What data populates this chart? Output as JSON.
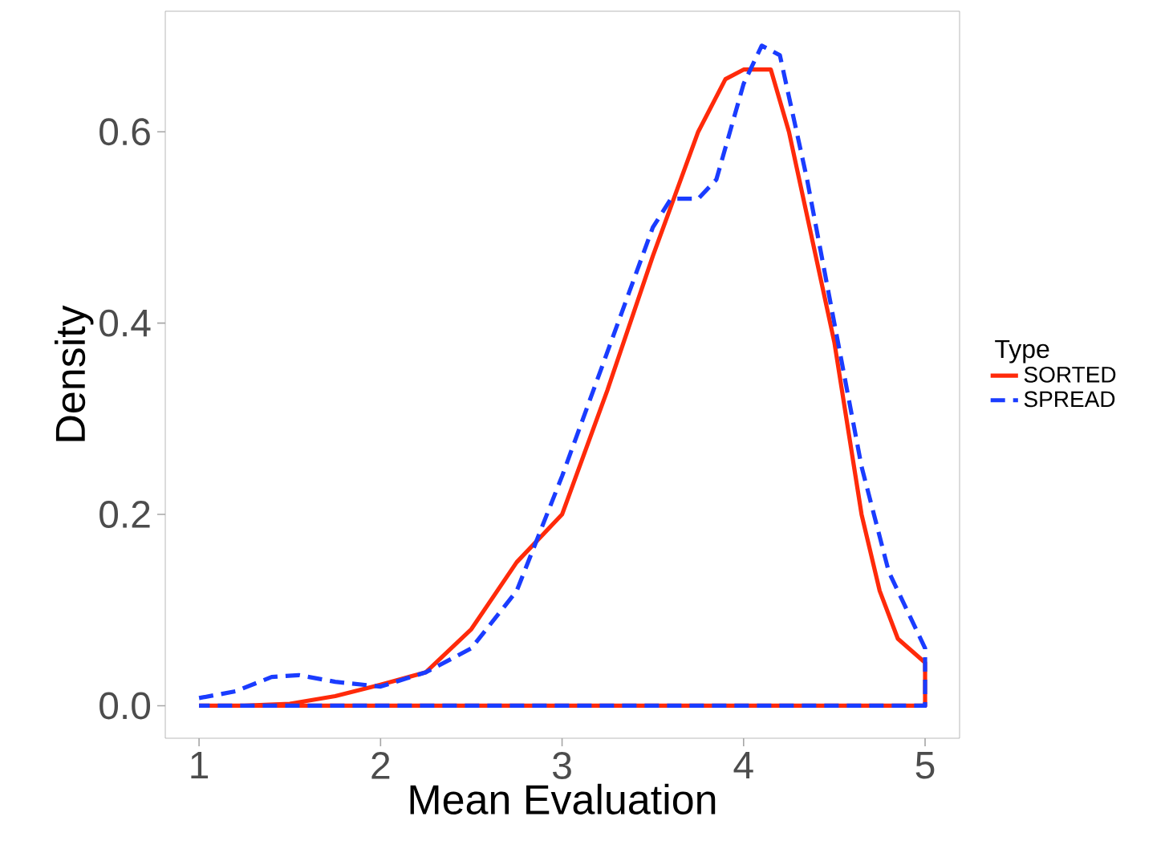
{
  "chart_data": {
    "type": "line",
    "xlabel": "Mean Evaluation",
    "ylabel": "Density",
    "legend_title": "Type",
    "legend": "right",
    "grid": false,
    "xlim": [
      0.814,
      5.19
    ],
    "ylim": [
      -0.034,
      0.726
    ],
    "xticks": [
      1,
      2,
      3,
      4,
      5
    ],
    "yticks": [
      {
        "value": 0,
        "label": "0.0"
      },
      {
        "value": 0.2,
        "label": "0.2"
      },
      {
        "value": 0.4,
        "label": "0.4"
      },
      {
        "value": 0.6,
        "label": "0.6"
      }
    ],
    "series": [
      {
        "name": "SORTED",
        "color": "#ff2a0a",
        "line_style": "solid",
        "x": [
          1.25,
          1.5,
          1.75,
          2.0,
          2.25,
          2.5,
          2.75,
          3.0,
          3.25,
          3.5,
          3.75,
          3.9,
          4.0,
          4.15,
          4.25,
          4.5,
          4.65,
          4.75,
          4.85,
          5.0,
          5.0,
          1.0
        ],
        "values": [
          0,
          0.002,
          0.01,
          0.022,
          0.035,
          0.08,
          0.15,
          0.2,
          0.33,
          0.47,
          0.6,
          0.655,
          0.665,
          0.665,
          0.6,
          0.38,
          0.2,
          0.12,
          0.07,
          0.045,
          0,
          0
        ]
      },
      {
        "name": "SPREAD",
        "color": "#1a3cff",
        "line_style": "dashed",
        "x": [
          1.0,
          1.2,
          1.4,
          1.55,
          1.75,
          2.0,
          2.25,
          2.5,
          2.75,
          3.0,
          3.25,
          3.5,
          3.6,
          3.75,
          3.85,
          4.0,
          4.1,
          4.2,
          4.35,
          4.5,
          4.65,
          4.8,
          4.9,
          5.0,
          5.0,
          1.0
        ],
        "values": [
          0.008,
          0.015,
          0.03,
          0.032,
          0.025,
          0.02,
          0.035,
          0.06,
          0.12,
          0.24,
          0.37,
          0.5,
          0.53,
          0.53,
          0.55,
          0.65,
          0.69,
          0.68,
          0.55,
          0.4,
          0.25,
          0.14,
          0.1,
          0.06,
          0,
          0
        ]
      }
    ]
  }
}
